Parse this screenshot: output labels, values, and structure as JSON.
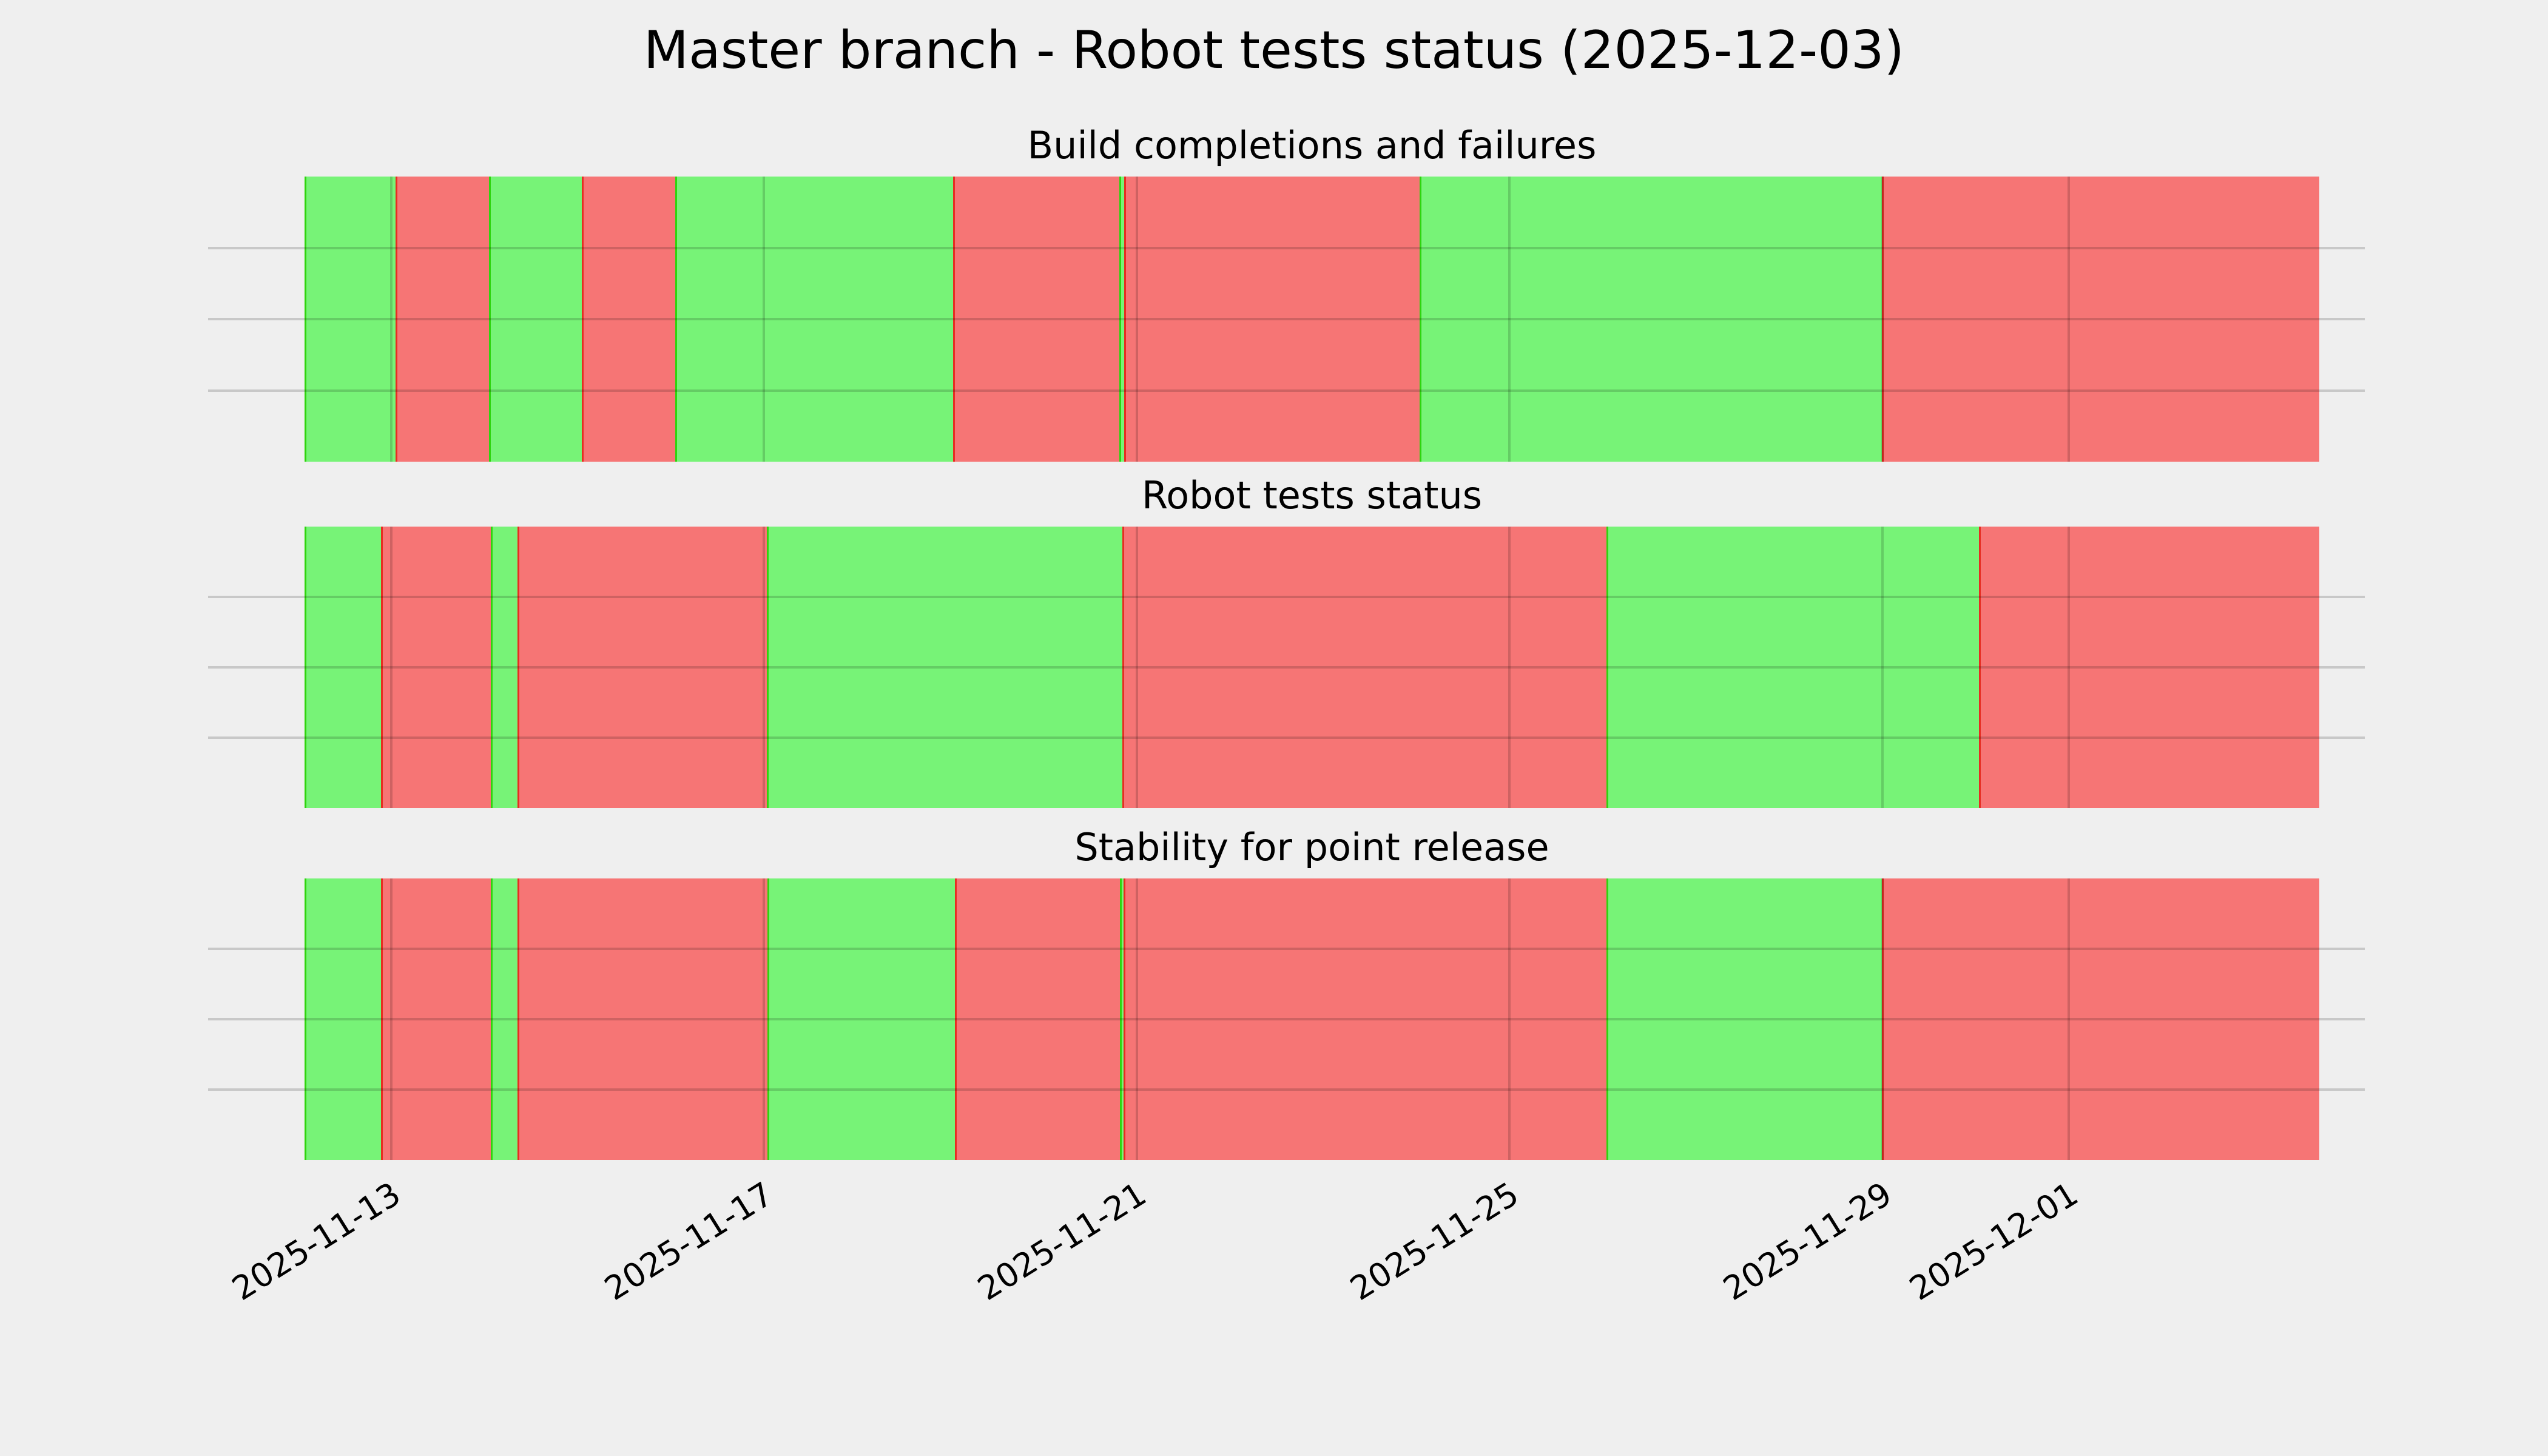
{
  "figure": {
    "title": "Master branch - Robot tests status (2025-12-03)",
    "background_color": "#efefef",
    "text_color": "#000000"
  },
  "status_colors": {
    "success": "#77f377",
    "failure": "#f67575"
  },
  "x_axis": {
    "tick_labels": [
      "2025-11-13",
      "2025-11-17",
      "2025-11-21",
      "2025-11-25",
      "2025-11-29",
      "2025-12-01"
    ],
    "tick_positions_pct": [
      4.31,
      22.79,
      41.31,
      59.8,
      78.32,
      87.56
    ]
  },
  "chart_data": [
    {
      "type": "status-timeline",
      "title": "Build completions and failures",
      "legend": "green = success, red = failure",
      "y_gridlines_pct": [
        25,
        50,
        75
      ],
      "segments": [
        {
          "status": "success",
          "start_pct": 0.0,
          "end_pct": 4.52
        },
        {
          "status": "failure",
          "start_pct": 4.52,
          "end_pct": 9.15
        },
        {
          "status": "success",
          "start_pct": 9.15,
          "end_pct": 13.76
        },
        {
          "status": "failure",
          "start_pct": 13.76,
          "end_pct": 18.4
        },
        {
          "status": "success",
          "start_pct": 18.4,
          "end_pct": 32.19
        },
        {
          "status": "failure",
          "start_pct": 32.19,
          "end_pct": 40.44
        },
        {
          "status": "success",
          "start_pct": 40.44,
          "end_pct": 40.68
        },
        {
          "status": "failure",
          "start_pct": 40.68,
          "end_pct": 55.34
        },
        {
          "status": "success",
          "start_pct": 55.34,
          "end_pct": 78.29
        },
        {
          "status": "failure",
          "start_pct": 78.29,
          "end_pct": 100.0
        }
      ]
    },
    {
      "type": "status-timeline",
      "title": "Robot tests status",
      "legend": "green = success, red = failure",
      "y_gridlines_pct": [
        25,
        50,
        75
      ],
      "segments": [
        {
          "status": "success",
          "start_pct": 0.0,
          "end_pct": 3.79
        },
        {
          "status": "failure",
          "start_pct": 3.79,
          "end_pct": 9.24
        },
        {
          "status": "success",
          "start_pct": 9.24,
          "end_pct": 10.57
        },
        {
          "status": "failure",
          "start_pct": 10.57,
          "end_pct": 22.94
        },
        {
          "status": "success",
          "start_pct": 22.94,
          "end_pct": 40.59
        },
        {
          "status": "failure",
          "start_pct": 40.59,
          "end_pct": 64.62
        },
        {
          "status": "success",
          "start_pct": 64.62,
          "end_pct": 83.11
        },
        {
          "status": "failure",
          "start_pct": 83.11,
          "end_pct": 100.0
        }
      ]
    },
    {
      "type": "status-timeline",
      "title": "Stability for point release",
      "legend": "green = success, red = failure",
      "y_gridlines_pct": [
        25,
        50,
        75
      ],
      "segments": [
        {
          "status": "success",
          "start_pct": 0.0,
          "end_pct": 3.79
        },
        {
          "status": "failure",
          "start_pct": 3.79,
          "end_pct": 9.24
        },
        {
          "status": "success",
          "start_pct": 9.24,
          "end_pct": 10.57
        },
        {
          "status": "failure",
          "start_pct": 10.57,
          "end_pct": 22.97
        },
        {
          "status": "success",
          "start_pct": 22.97,
          "end_pct": 32.28
        },
        {
          "status": "failure",
          "start_pct": 32.28,
          "end_pct": 40.47
        },
        {
          "status": "success",
          "start_pct": 40.47,
          "end_pct": 40.65
        },
        {
          "status": "failure",
          "start_pct": 40.65,
          "end_pct": 64.62
        },
        {
          "status": "success",
          "start_pct": 64.62,
          "end_pct": 78.29
        },
        {
          "status": "failure",
          "start_pct": 78.29,
          "end_pct": 100.0
        }
      ]
    }
  ]
}
